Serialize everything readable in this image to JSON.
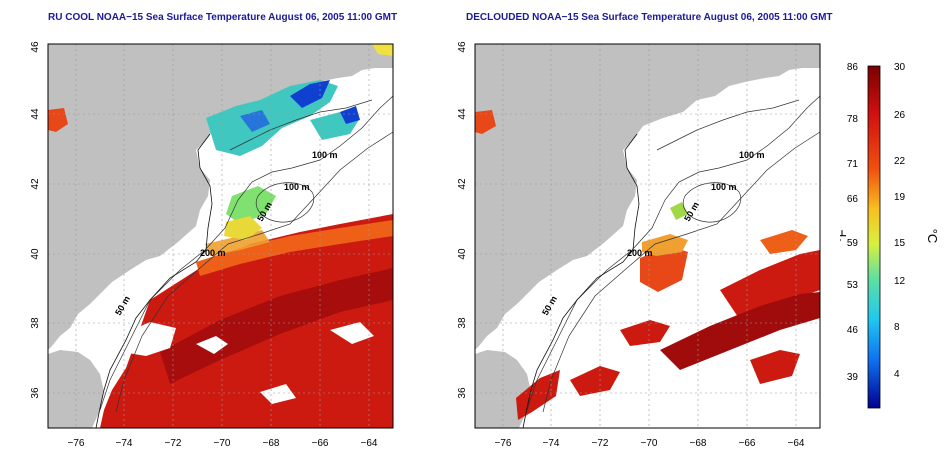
{
  "maps": [
    {
      "title": "RU COOL NOAA−15 Sea Surface Temperature August 06, 2005 11:00 GMT",
      "depth_labels": [
        "100 m",
        "100 m",
        "50 m",
        "200 m",
        "50 m"
      ]
    },
    {
      "title": "DECLOUDED NOAA−15 Sea Surface Temperature August 06, 2005 11:00 GMT",
      "depth_labels": [
        "100 m",
        "100 m",
        "50 m",
        "200 m",
        "50 m"
      ]
    }
  ],
  "axes": {
    "lon_ticks": [
      "−76",
      "−74",
      "−72",
      "−70",
      "−68",
      "−66",
      "−64"
    ],
    "lat_ticks": [
      "36",
      "38",
      "40",
      "42",
      "44",
      "46"
    ],
    "lon_range": [
      -77,
      -63
    ],
    "lat_range": [
      35,
      46
    ]
  },
  "colorbar": {
    "fahrenheit_ticks": [
      "86",
      "78",
      "71",
      "66",
      "59",
      "53",
      "46",
      "39"
    ],
    "celsius_ticks": [
      "30",
      "26",
      "22",
      "19",
      "15",
      "12",
      "8",
      "4"
    ],
    "fahrenheit_label": "°F",
    "celsius_label": "°C"
  },
  "colors": {
    "land": "#c0c0c0",
    "cloud": "#ffffff",
    "title": "#1a1a9a",
    "warm": "#cc1a10",
    "hot": "#b50e0e",
    "cool": "#30c8d8",
    "cold": "#1040d0"
  }
}
